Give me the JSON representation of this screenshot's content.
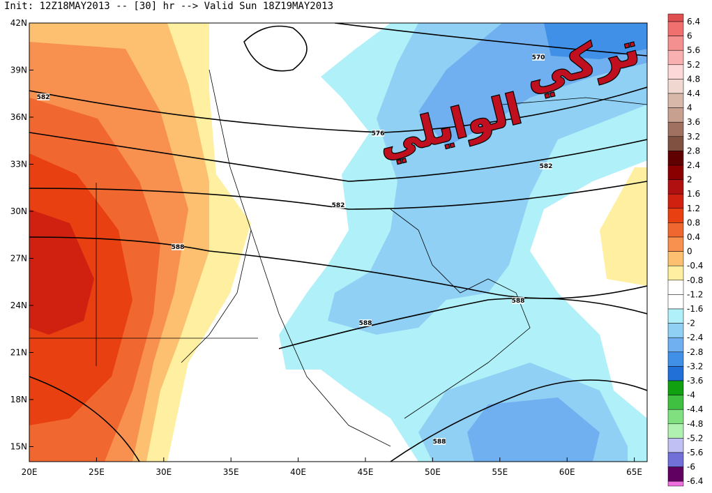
{
  "header": {
    "title": "Init: 12Z18MAY2013 -- [30] hr --> Valid Sun 18Z19MAY2013"
  },
  "map": {
    "lat_labels": [
      "42N",
      "39N",
      "36N",
      "33N",
      "30N",
      "27N",
      "24N",
      "21N",
      "18N",
      "15N"
    ],
    "lon_labels": [
      "20E",
      "25E",
      "30E",
      "35E",
      "40E",
      "45E",
      "50E",
      "55E",
      "60E",
      "65E"
    ],
    "contour_labels": [
      "570",
      "576",
      "582",
      "582",
      "582",
      "588",
      "588",
      "588",
      "588"
    ],
    "watermark": [
      "تركي",
      "الوايلي"
    ]
  },
  "colorbar": {
    "labels": [
      "6.4",
      "6",
      "5.6",
      "5.2",
      "4.8",
      "4.4",
      "4",
      "3.6",
      "3.2",
      "2.8",
      "2.4",
      "2",
      "1.6",
      "1.2",
      "0.8",
      "0.4",
      "0",
      "-0.4",
      "-0.8",
      "-1.2",
      "-1.6",
      "-2",
      "-2.4",
      "-2.8",
      "-3.2",
      "-3.6",
      "-4",
      "-4.4",
      "-4.8",
      "-5.2",
      "-5.6",
      "-6",
      "-6.4"
    ],
    "colors": [
      "#e05050",
      "#f07070",
      "#f49090",
      "#f8b0b0",
      "#fcd8d8",
      "#f0d8d0",
      "#d8b8a8",
      "#c8a090",
      "#a07060",
      "#805040",
      "#600000",
      "#8a0000",
      "#b01010",
      "#d02010",
      "#e84010",
      "#f06830",
      "#f89050",
      "#fcc070",
      "#fef0a0",
      "#ffffff",
      "#ffffff",
      "#b0f0f8",
      "#90d0f4",
      "#70b0f0",
      "#4090e8",
      "#2070d8",
      "#10a010",
      "#40c040",
      "#80e080",
      "#b0f0b0",
      "#c0c0f4",
      "#7070d8",
      "#600060",
      "#f070e0"
    ]
  }
}
